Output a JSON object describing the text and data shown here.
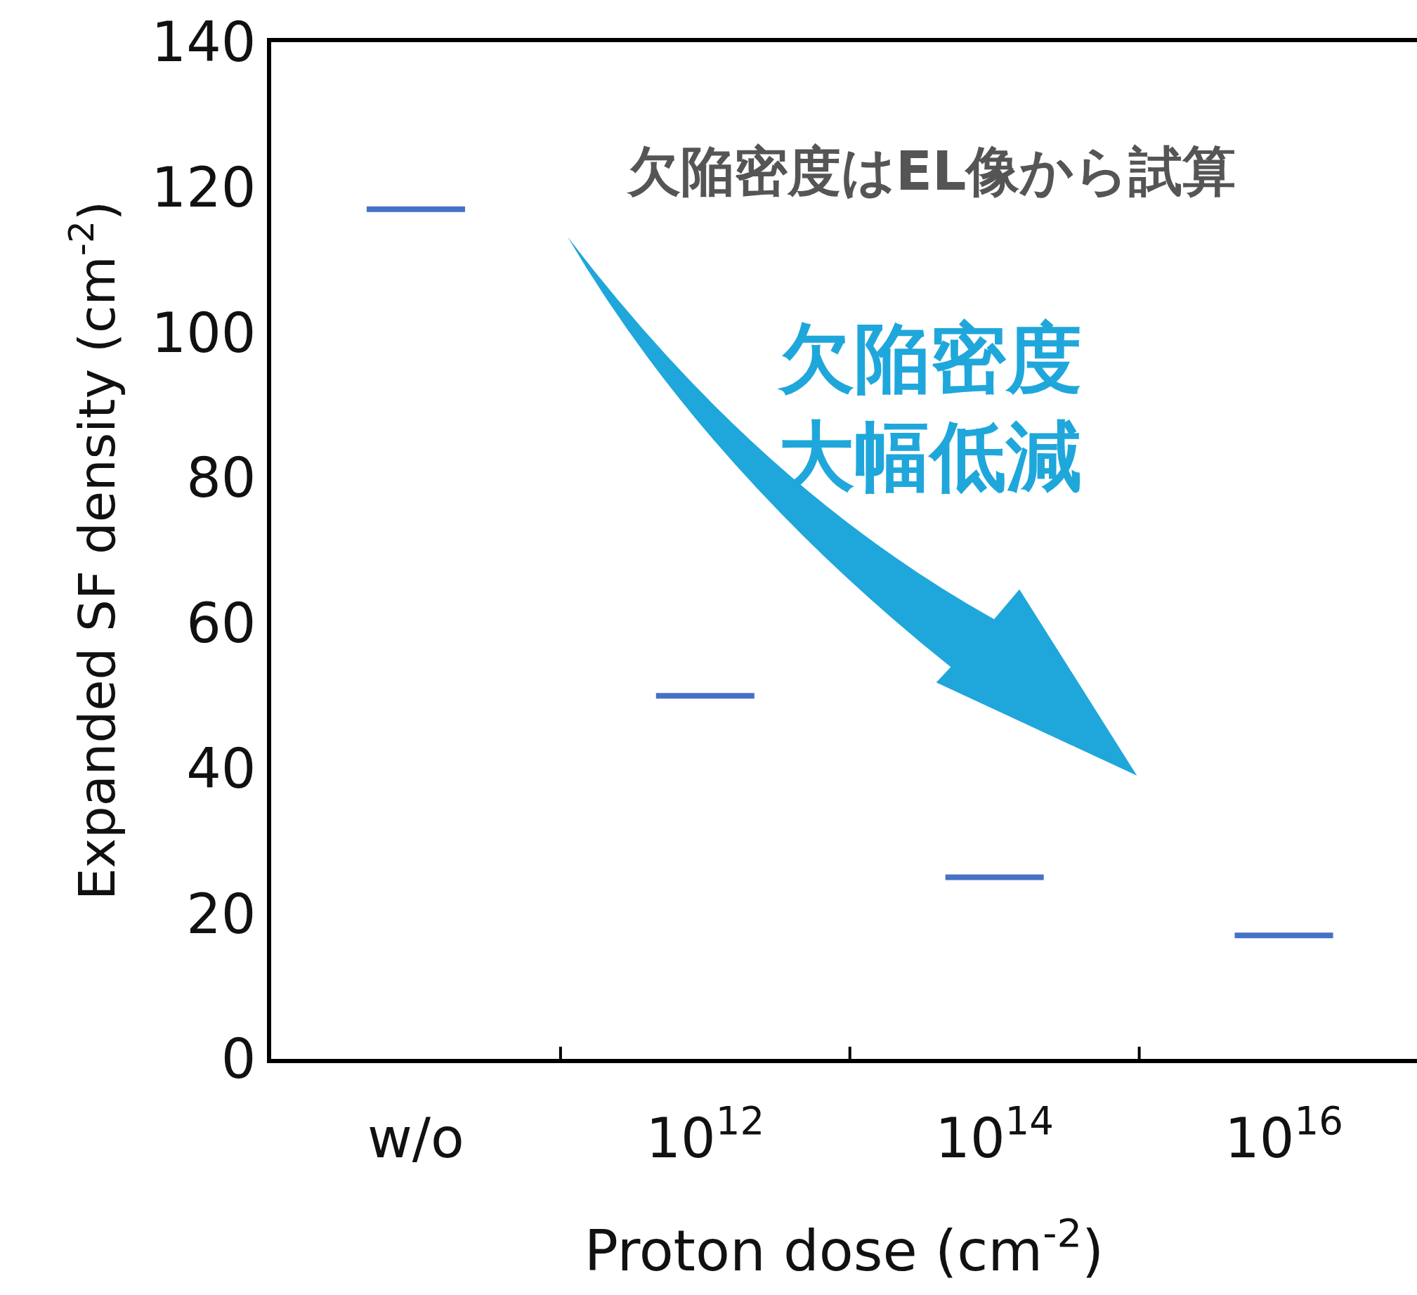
{
  "chart_data": {
    "type": "box",
    "xlabel": "Proton dose (cm$^{-2}$)",
    "ylabel": "Expanded SF density (cm$^{-2}$)",
    "categories": [
      "w/o",
      "10$^{12}$",
      "10$^{14}$",
      "10$^{16}$"
    ],
    "series": [
      {
        "color": "#4472c4",
        "boxes": [
          {
            "low": 117,
            "q1": 117,
            "median": 117,
            "q3": 117,
            "high": 117
          },
          {
            "low": 50,
            "q1": 50,
            "median": 50,
            "q3": 50,
            "high": 50
          },
          {
            "low": 25,
            "q1": 25,
            "median": 25,
            "q3": 25,
            "high": 25
          },
          {
            "low": 17,
            "q1": 17,
            "median": 17,
            "q3": 17,
            "high": 17
          }
        ]
      }
    ],
    "ylim": [
      0,
      140
    ],
    "yticks": [
      0,
      20,
      40,
      60,
      80,
      100,
      120,
      140
    ],
    "annotations": [
      "欠陥密度はEL像から試算",
      "欠陥密度大幅低減"
    ]
  }
}
